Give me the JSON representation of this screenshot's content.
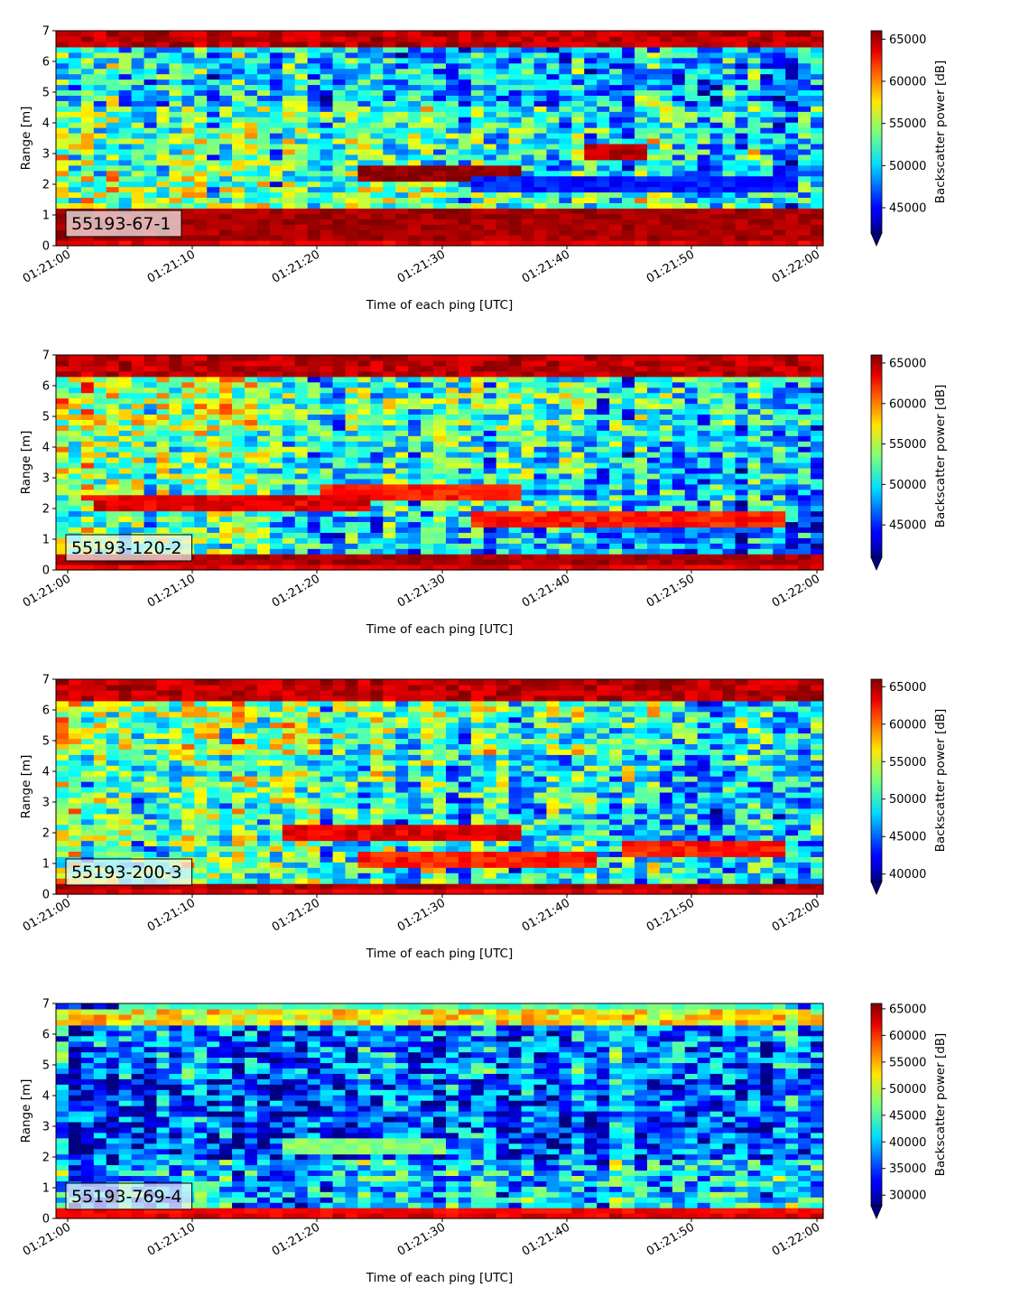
{
  "chart_data": [
    {
      "type": "heatmap",
      "panel_label": "55193-67-1",
      "xlabel": "Time of each ping [UTC]",
      "ylabel": "Range [m]",
      "colorbar_label": "Backscatter power [dB]",
      "colormap": "jet",
      "x_ticks": [
        "01:21:00",
        "01:21:10",
        "01:21:20",
        "01:21:30",
        "01:21:40",
        "01:21:50",
        "01:22:00"
      ],
      "y_ticks": [
        0,
        1,
        2,
        3,
        4,
        5,
        6,
        7
      ],
      "ylim": [
        0,
        7
      ],
      "colorbar_ticks": [
        45000,
        50000,
        55000,
        60000,
        65000
      ],
      "colorbar_range": [
        42000,
        66000
      ],
      "features": {
        "band_near": [
          0.25,
          1.15,
          1.0
        ],
        "band_top": [
          6.45,
          7.0,
          1.0
        ],
        "mid_level": 0.5,
        "lower_level": 0.55,
        "upper_level": 0.4,
        "time_trend": -0.15,
        "streaks": [
          [
            0.4,
            0.6,
            2.3,
            1.0
          ],
          [
            0.7,
            0.78,
            3.0,
            0.95
          ],
          [
            0.55,
            0.98,
            1.95,
            0.15
          ]
        ]
      }
    },
    {
      "type": "heatmap",
      "panel_label": "55193-120-2",
      "xlabel": "Time of each ping [UTC]",
      "ylabel": "Range [m]",
      "colorbar_label": "Backscatter power [dB]",
      "colormap": "jet",
      "x_ticks": [
        "01:21:00",
        "01:21:10",
        "01:21:20",
        "01:21:30",
        "01:21:40",
        "01:21:50",
        "01:22:00"
      ],
      "y_ticks": [
        0,
        1,
        2,
        3,
        4,
        5,
        6,
        7
      ],
      "ylim": [
        0,
        7
      ],
      "colorbar_ticks": [
        45000,
        50000,
        55000,
        60000,
        65000
      ],
      "colorbar_range": [
        41000,
        66000
      ],
      "features": {
        "band_near": [
          0.1,
          0.45,
          1.0
        ],
        "band_top": [
          6.3,
          7.0,
          1.0
        ],
        "mid_level": 0.5,
        "lower_level": 0.45,
        "upper_level": 0.55,
        "time_trend": -0.2,
        "streaks": [
          [
            0.35,
            0.6,
            2.5,
            0.85
          ],
          [
            0.55,
            0.95,
            1.6,
            0.85
          ],
          [
            0.05,
            0.4,
            2.2,
            0.9
          ]
        ]
      }
    },
    {
      "type": "heatmap",
      "panel_label": "55193-200-3",
      "xlabel": "Time of each ping [UTC]",
      "ylabel": "Range [m]",
      "colorbar_label": "Backscatter power [dB]",
      "colormap": "jet",
      "x_ticks": [
        "01:21:00",
        "01:21:10",
        "01:21:20",
        "01:21:30",
        "01:21:40",
        "01:21:50",
        "01:22:00"
      ],
      "y_ticks": [
        0,
        1,
        2,
        3,
        4,
        5,
        6,
        7
      ],
      "ylim": [
        0,
        7
      ],
      "colorbar_ticks": [
        40000,
        45000,
        50000,
        55000,
        60000,
        65000
      ],
      "colorbar_range": [
        39000,
        66000
      ],
      "features": {
        "band_near": [
          0.1,
          0.4,
          1.0
        ],
        "band_top": [
          6.35,
          7.0,
          1.0
        ],
        "mid_level": 0.5,
        "lower_level": 0.5,
        "upper_level": 0.55,
        "time_trend": -0.2,
        "streaks": [
          [
            0.3,
            0.6,
            2.0,
            0.9
          ],
          [
            0.4,
            0.7,
            1.2,
            0.85
          ],
          [
            0.75,
            0.95,
            1.5,
            0.85
          ]
        ]
      }
    },
    {
      "type": "heatmap",
      "panel_label": "55193-769-4",
      "xlabel": "Time of each ping [UTC]",
      "ylabel": "Range [m]",
      "colorbar_label": "Backscatter power [dB]",
      "colormap": "jet",
      "x_ticks": [
        "01:21:00",
        "01:21:10",
        "01:21:20",
        "01:21:30",
        "01:21:40",
        "01:21:50",
        "01:22:00"
      ],
      "y_ticks": [
        0,
        1,
        2,
        3,
        4,
        5,
        6,
        7
      ],
      "ylim": [
        0,
        7
      ],
      "colorbar_ticks": [
        30000,
        35000,
        40000,
        45000,
        50000,
        55000,
        60000,
        65000
      ],
      "colorbar_range": [
        28000,
        66000
      ],
      "features": {
        "band_near": [
          0.15,
          0.35,
          0.92
        ],
        "band_top": [
          6.35,
          6.75,
          0.78
        ],
        "mid_level": 0.18,
        "lower_level": 0.3,
        "upper_level": 0.22,
        "time_trend": 0.05,
        "streaks": [
          [
            0.3,
            0.5,
            2.4,
            0.5
          ],
          [
            0.1,
            0.95,
            6.9,
            0.45
          ]
        ]
      }
    }
  ]
}
